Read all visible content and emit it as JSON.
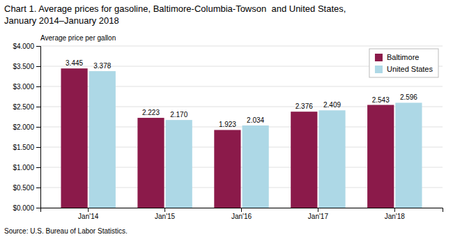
{
  "chart_data": {
    "type": "bar",
    "title": "Chart 1. Average prices for gasoline, Baltimore-Columbia-Towson  and United States,",
    "subtitle": "January 2014–January 2018",
    "ylabel": "Average price per gallon",
    "source": "Source: U.S. Bureau of Labor Statistics.",
    "categories": [
      "Jan'14",
      "Jan'15",
      "Jan'16",
      "Jan'17",
      "Jan'18"
    ],
    "series": [
      {
        "name": "Baltimore",
        "color": "#8B1A4A",
        "values": [
          3.445,
          2.223,
          1.923,
          2.376,
          2.543
        ],
        "value_labels": [
          "3.445",
          "2.223",
          "1.923",
          "2.376",
          "2.543"
        ]
      },
      {
        "name": "United States",
        "color": "#ADD8E6",
        "values": [
          3.378,
          2.17,
          2.034,
          2.409,
          2.596
        ],
        "value_labels": [
          "3.378",
          "2.170",
          "2.034",
          "2.409",
          "2.596"
        ]
      }
    ],
    "ylim": [
      0,
      4.0
    ],
    "yticks": [
      {
        "value": 0.0,
        "label": "$0.000"
      },
      {
        "value": 0.5,
        "label": "$0.500"
      },
      {
        "value": 1.0,
        "label": "$1.000"
      },
      {
        "value": 1.5,
        "label": "$1.500"
      },
      {
        "value": 2.0,
        "label": "$2.000"
      },
      {
        "value": 2.5,
        "label": "$2.500"
      },
      {
        "value": 3.0,
        "label": "$3.000"
      },
      {
        "value": 3.5,
        "label": "$3.500"
      },
      {
        "value": 4.0,
        "label": "$4.000"
      }
    ],
    "grid": true,
    "legend": "top-right",
    "data_labels": true
  }
}
